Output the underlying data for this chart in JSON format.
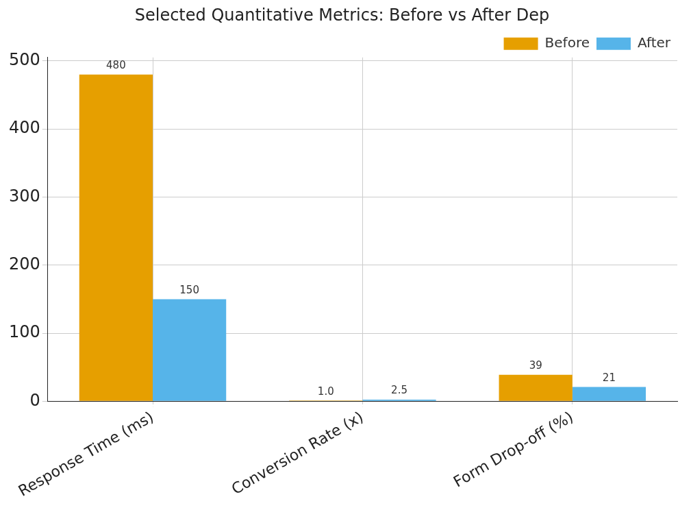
{
  "chart_data": {
    "type": "bar",
    "title": "Selected Quantitative Metrics: Before vs After Dep",
    "categories": [
      "Response Time (ms)",
      "Conversion Rate (x)",
      "Form Drop-off (%)"
    ],
    "series": [
      {
        "name": "Before",
        "color": "#e69f00",
        "values": [
          480,
          1.0,
          39
        ],
        "value_labels": [
          "480",
          "1.0",
          "39"
        ]
      },
      {
        "name": "After",
        "color": "#56b4e9",
        "values": [
          150,
          2.5,
          21
        ],
        "value_labels": [
          "150",
          "2.5",
          "21"
        ]
      }
    ],
    "ylim": [
      0,
      505
    ],
    "yticks": [
      0,
      100,
      200,
      300,
      400,
      500
    ],
    "grid": true,
    "legend": "top right"
  }
}
